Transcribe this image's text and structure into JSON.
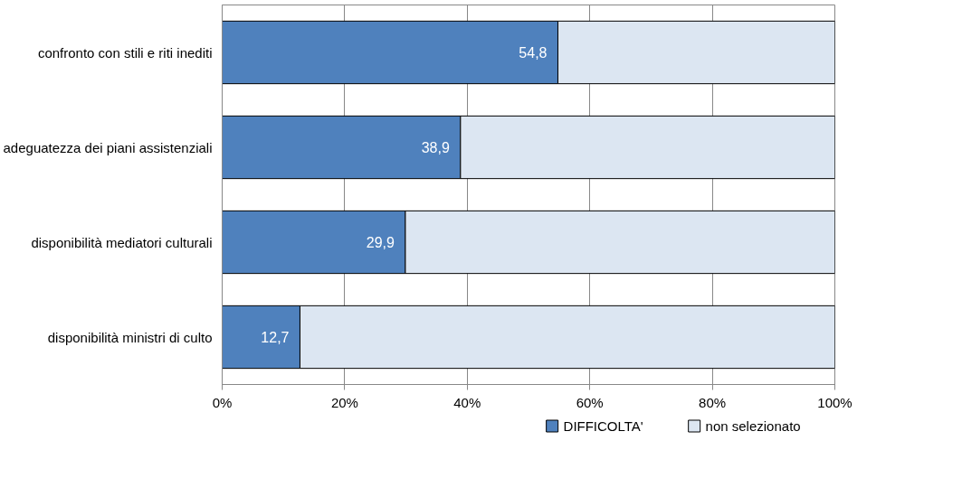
{
  "chart_data": {
    "type": "bar",
    "orientation": "horizontal",
    "stacked": true,
    "categories": [
      "confronto con stili e riti inediti",
      "adeguatezza dei piani assistenziali",
      "disponibilità mediatori culturali",
      "disponibilità ministri di culto"
    ],
    "series": [
      {
        "name": "DIFFICOLTA'",
        "color": "#4f81bd",
        "values": [
          54.8,
          38.9,
          29.9,
          12.7
        ],
        "value_labels": [
          "54,8",
          "38,9",
          "29,9",
          "12,7"
        ]
      },
      {
        "name": "non selezionato",
        "color": "#dce6f2",
        "values": [
          45.2,
          61.1,
          70.1,
          87.3
        ]
      }
    ],
    "xlim": [
      0,
      100
    ],
    "xticks": [
      {
        "value": 0,
        "label": "0%"
      },
      {
        "value": 20,
        "label": "20%"
      },
      {
        "value": 40,
        "label": "40%"
      },
      {
        "value": 60,
        "label": "60%"
      },
      {
        "value": 80,
        "label": "80%"
      },
      {
        "value": 100,
        "label": "100%"
      }
    ],
    "grid": "x",
    "legend": "bottom"
  }
}
